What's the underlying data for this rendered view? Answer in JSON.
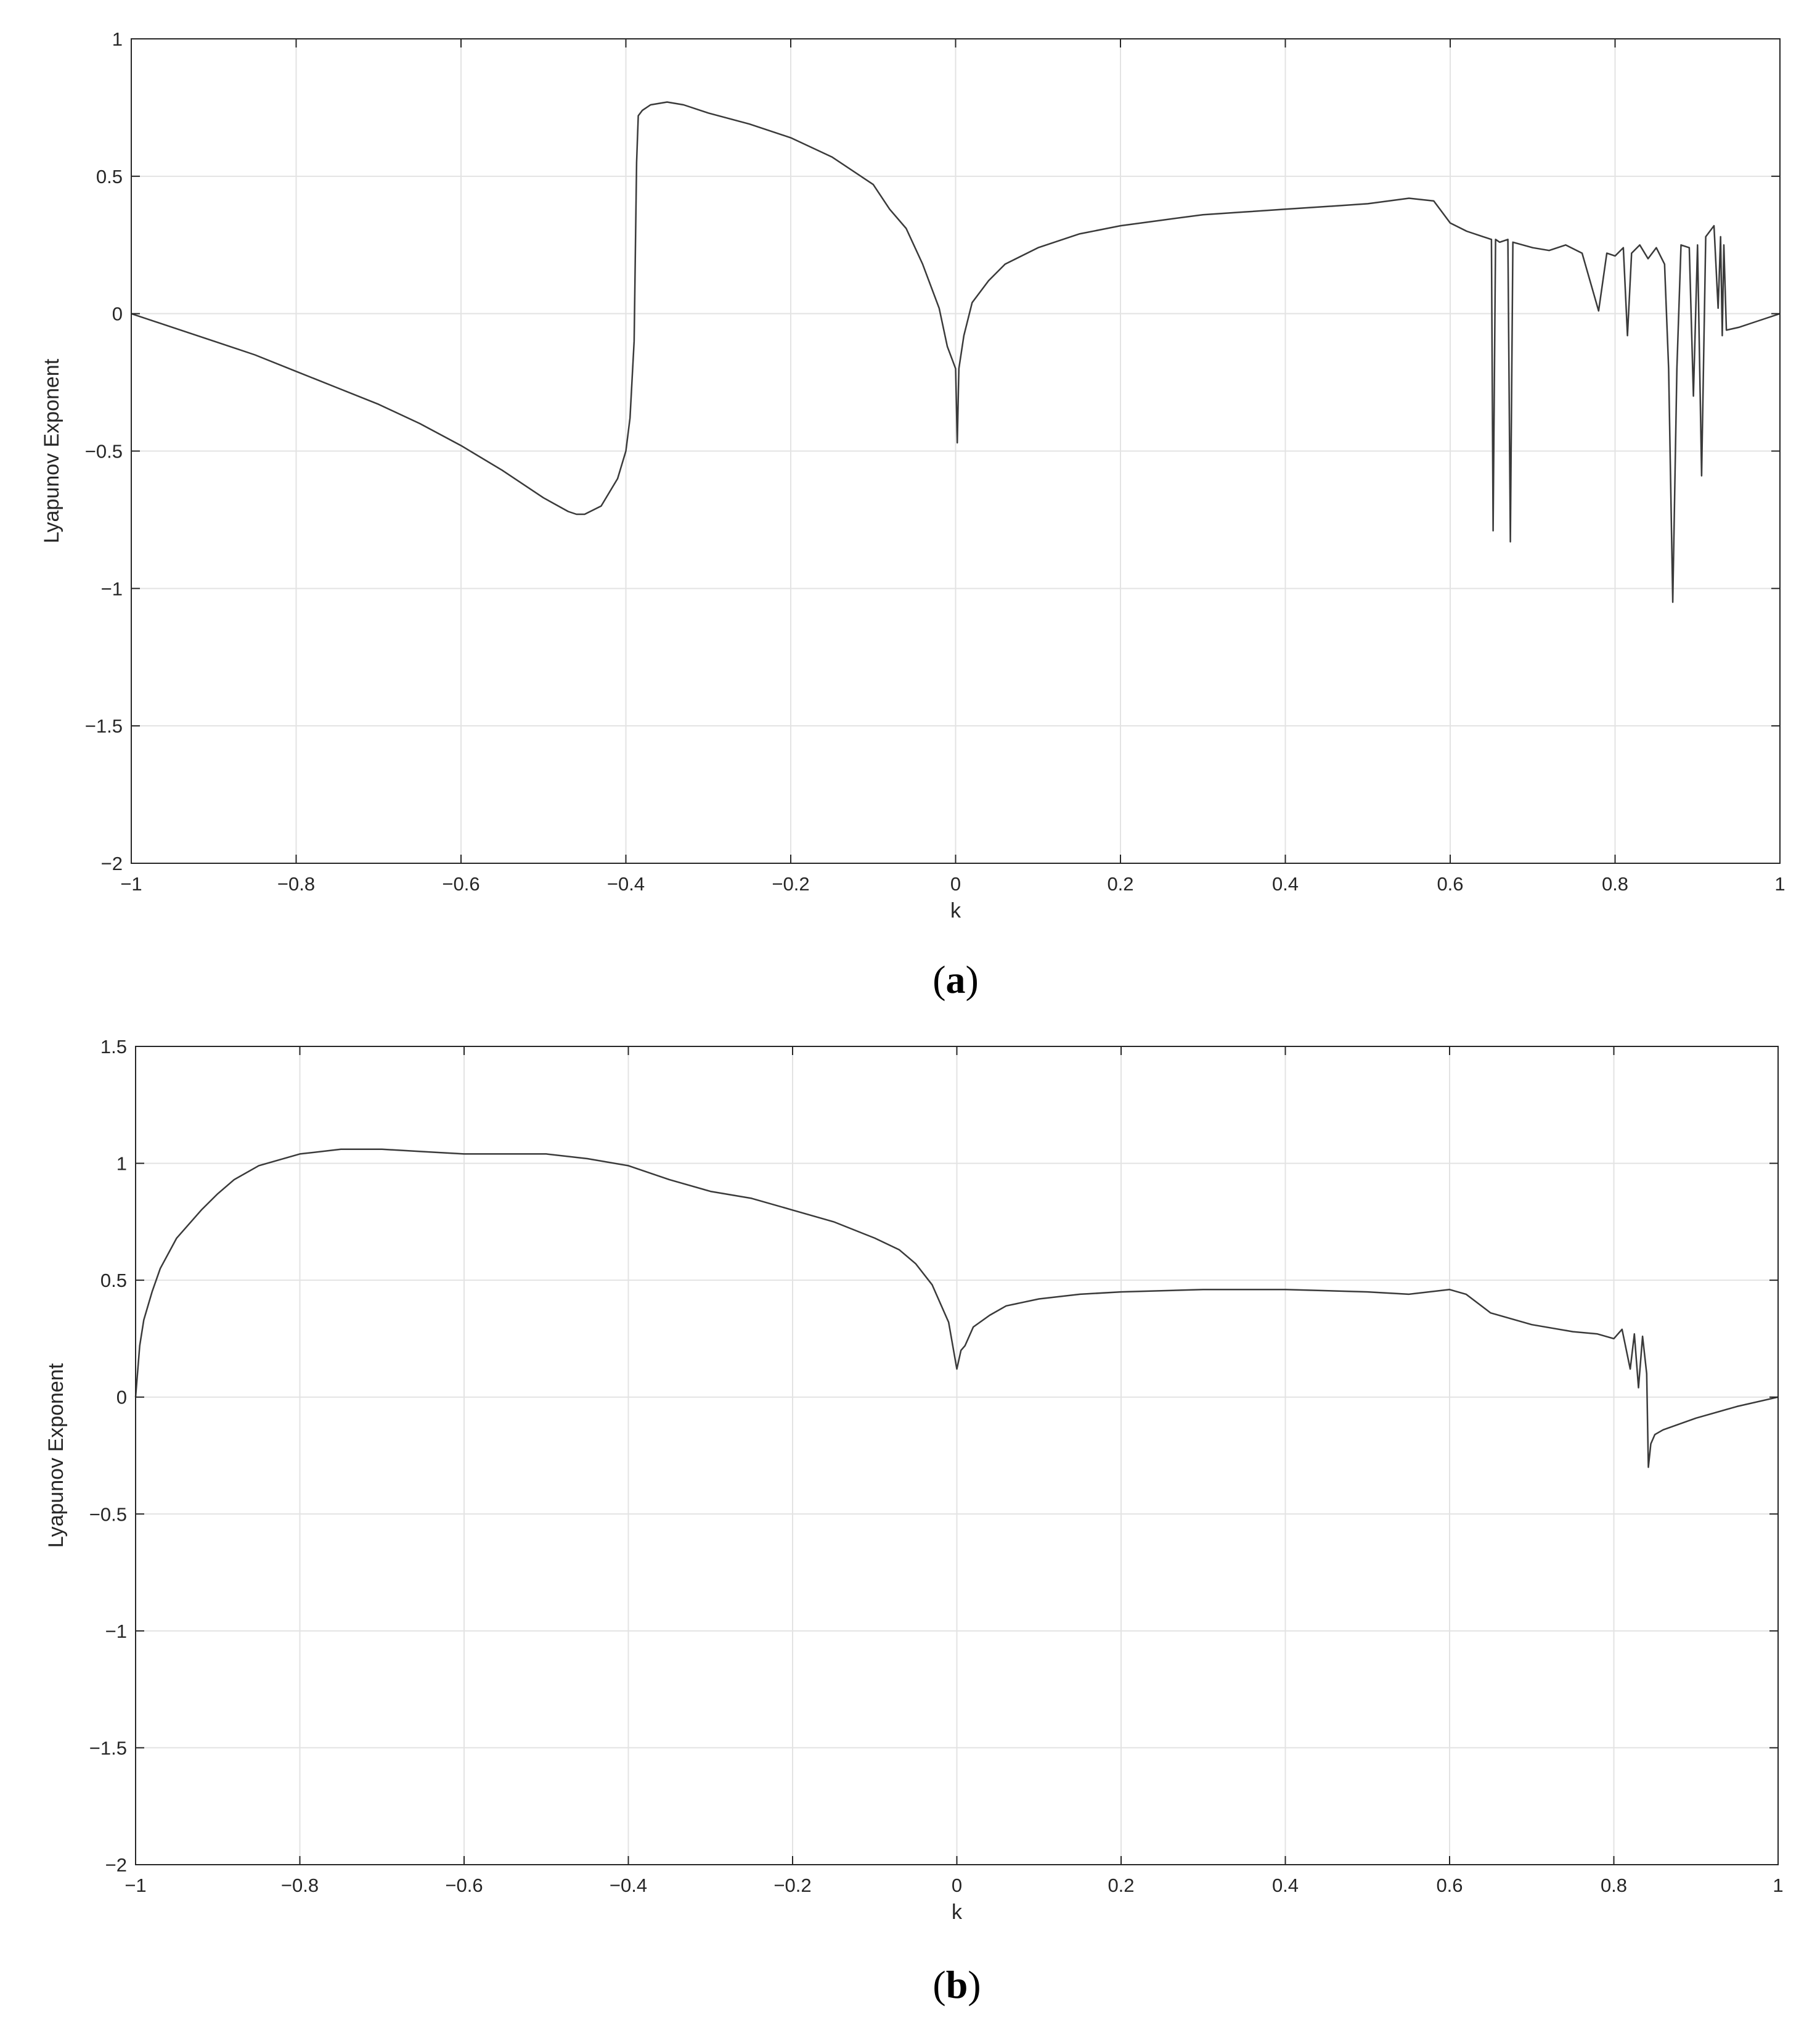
{
  "chart_data": [
    {
      "type": "line",
      "panel_label": "a",
      "xlabel": "k",
      "ylabel": "Lyapunov Exponent",
      "xlim": [
        -1,
        1
      ],
      "ylim": [
        -2,
        1
      ],
      "grid": true,
      "line_color": "#3a3a3a",
      "xticks": [
        "-1",
        "-0.8",
        "-0.6",
        "-0.4",
        "-0.2",
        "0",
        "0.2",
        "0.4",
        "0.6",
        "0.8",
        "1"
      ],
      "yticks": [
        "-2",
        "-1.5",
        "-1",
        "-0.5",
        "0",
        "0.5",
        "1"
      ],
      "series": [
        {
          "x": [
            -1.0,
            -0.95,
            -0.9,
            -0.85,
            -0.8,
            -0.75,
            -0.7,
            -0.65,
            -0.6,
            -0.55,
            -0.5,
            -0.47,
            -0.46,
            -0.45,
            -0.43,
            -0.41,
            -0.4,
            -0.395,
            -0.39,
            -0.387,
            -0.385,
            -0.38,
            -0.37,
            -0.35,
            -0.33,
            -0.3,
            -0.25,
            -0.2,
            -0.15,
            -0.1,
            -0.08,
            -0.06,
            -0.04,
            -0.02,
            -0.01,
            0.0,
            0.002,
            0.004,
            0.01,
            0.02,
            0.04,
            0.06,
            0.1,
            0.15,
            0.2,
            0.25,
            0.3,
            0.35,
            0.4,
            0.45,
            0.5,
            0.55,
            0.58,
            0.6,
            0.62,
            0.64,
            0.65,
            0.652,
            0.655,
            0.66,
            0.67,
            0.673,
            0.676,
            0.7,
            0.72,
            0.74,
            0.76,
            0.78,
            0.79,
            0.8,
            0.81,
            0.815,
            0.82,
            0.83,
            0.84,
            0.85,
            0.86,
            0.865,
            0.87,
            0.875,
            0.88,
            0.89,
            0.895,
            0.9,
            0.905,
            0.91,
            0.915,
            0.92,
            0.925,
            0.928,
            0.93,
            0.932,
            0.935,
            0.95,
            0.97,
            1.0
          ],
          "y": [
            0.0,
            -0.05,
            -0.1,
            -0.15,
            -0.21,
            -0.27,
            -0.33,
            -0.4,
            -0.48,
            -0.57,
            -0.67,
            -0.72,
            -0.73,
            -0.73,
            -0.7,
            -0.6,
            -0.5,
            -0.38,
            -0.1,
            0.55,
            0.72,
            0.74,
            0.76,
            0.77,
            0.76,
            0.73,
            0.69,
            0.64,
            0.57,
            0.47,
            0.38,
            0.31,
            0.18,
            0.02,
            -0.12,
            -0.2,
            -0.47,
            -0.2,
            -0.08,
            0.04,
            0.12,
            0.18,
            0.24,
            0.29,
            0.32,
            0.34,
            0.36,
            0.37,
            0.38,
            0.39,
            0.4,
            0.42,
            0.41,
            0.33,
            0.3,
            0.28,
            0.27,
            -0.79,
            0.27,
            0.26,
            0.27,
            -0.83,
            0.26,
            0.24,
            0.23,
            0.25,
            0.22,
            0.01,
            0.22,
            0.21,
            0.24,
            -0.08,
            0.22,
            0.25,
            0.2,
            0.24,
            0.18,
            -0.2,
            -1.05,
            -0.2,
            0.25,
            0.24,
            -0.3,
            0.25,
            -0.59,
            0.28,
            0.3,
            0.32,
            0.02,
            0.28,
            -0.08,
            0.25,
            -0.06,
            -0.05,
            -0.03,
            0.0
          ]
        }
      ]
    },
    {
      "type": "line",
      "panel_label": "b",
      "xlabel": "k",
      "ylabel": "Lyapunov Exponent",
      "xlim": [
        -1,
        1
      ],
      "ylim": [
        -2,
        1.5
      ],
      "grid": true,
      "line_color": "#3a3a3a",
      "xticks": [
        "-1",
        "-0.8",
        "-0.6",
        "-0.4",
        "-0.2",
        "0",
        "0.2",
        "0.4",
        "0.6",
        "0.8",
        "1"
      ],
      "yticks": [
        "-2",
        "-1.5",
        "-1",
        "-0.5",
        "0",
        "0.5",
        "1",
        "1.5"
      ],
      "series": [
        {
          "x": [
            -1.0,
            -0.995,
            -0.99,
            -0.98,
            -0.97,
            -0.95,
            -0.92,
            -0.9,
            -0.88,
            -0.85,
            -0.8,
            -0.75,
            -0.7,
            -0.65,
            -0.6,
            -0.55,
            -0.5,
            -0.45,
            -0.4,
            -0.35,
            -0.3,
            -0.25,
            -0.2,
            -0.15,
            -0.1,
            -0.07,
            -0.05,
            -0.03,
            -0.01,
            0.0,
            0.005,
            0.01,
            0.02,
            0.04,
            0.06,
            0.1,
            0.15,
            0.2,
            0.3,
            0.4,
            0.5,
            0.55,
            0.6,
            0.62,
            0.65,
            0.7,
            0.75,
            0.78,
            0.8,
            0.81,
            0.82,
            0.825,
            0.83,
            0.835,
            0.84,
            0.842,
            0.845,
            0.85,
            0.86,
            0.9,
            0.95,
            1.0
          ],
          "y": [
            0.0,
            0.22,
            0.33,
            0.45,
            0.55,
            0.68,
            0.8,
            0.87,
            0.93,
            0.99,
            1.04,
            1.06,
            1.06,
            1.05,
            1.04,
            1.04,
            1.04,
            1.02,
            0.99,
            0.93,
            0.88,
            0.85,
            0.8,
            0.75,
            0.68,
            0.63,
            0.57,
            0.48,
            0.32,
            0.12,
            0.2,
            0.22,
            0.3,
            0.35,
            0.39,
            0.42,
            0.44,
            0.45,
            0.46,
            0.46,
            0.45,
            0.44,
            0.46,
            0.44,
            0.36,
            0.31,
            0.28,
            0.27,
            0.25,
            0.29,
            0.12,
            0.27,
            0.04,
            0.26,
            0.1,
            -0.3,
            -0.2,
            -0.16,
            -0.14,
            -0.09,
            -0.04,
            0.0
          ]
        }
      ]
    }
  ]
}
